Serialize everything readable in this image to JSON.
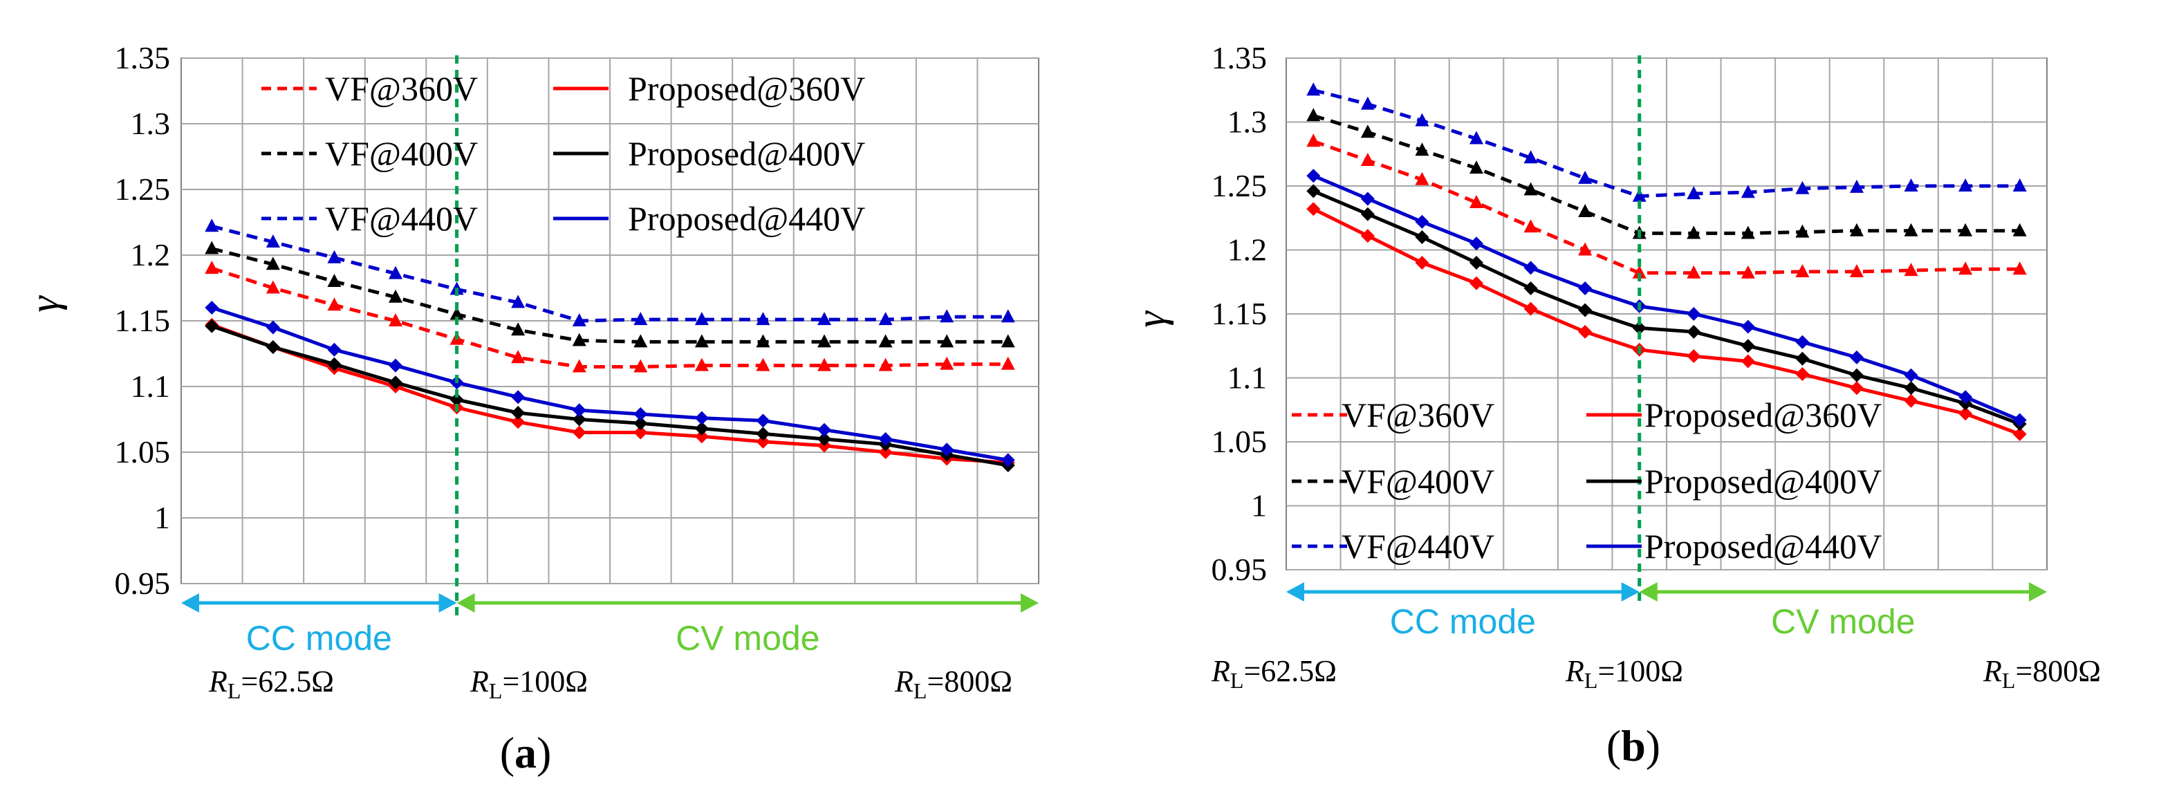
{
  "chart_data": [
    {
      "type": "line",
      "panel_label": "(a)",
      "ylabel": "γ",
      "ylim": [
        0.95,
        1.35
      ],
      "yticks": [
        "0.95",
        "1",
        "1.05",
        "1.1",
        "1.15",
        "1.2",
        "1.25",
        "1.3",
        "1.35"
      ],
      "legend_position": "top",
      "legend_rows": 3,
      "divider_index": 4,
      "mode_labels": [
        "CC mode",
        "CV mode"
      ],
      "rl_labels": [
        {
          "sub": "L",
          "value": "=62.5Ω"
        },
        {
          "sub": "L",
          "value": "=100Ω"
        },
        {
          "sub": "L",
          "value": "=800Ω"
        }
      ],
      "series": [
        {
          "name": "VF@360V",
          "color": "#ff0000",
          "dashed": true,
          "values": [
            1.19,
            1.175,
            1.162,
            1.15,
            1.136,
            1.122,
            1.115,
            1.115,
            1.116,
            1.116,
            1.116,
            1.116,
            1.117,
            1.117
          ]
        },
        {
          "name": "VF@400V",
          "color": "#000000",
          "dashed": true,
          "values": [
            1.205,
            1.193,
            1.18,
            1.168,
            1.155,
            1.143,
            1.135,
            1.134,
            1.134,
            1.134,
            1.134,
            1.134,
            1.134,
            1.134
          ]
        },
        {
          "name": "VF@440V",
          "color": "#0000cc",
          "dashed": true,
          "values": [
            1.222,
            1.21,
            1.198,
            1.186,
            1.174,
            1.164,
            1.15,
            1.151,
            1.151,
            1.151,
            1.151,
            1.151,
            1.153,
            1.153
          ]
        },
        {
          "name": "Proposed@360V",
          "color": "#ff0000",
          "dashed": false,
          "values": [
            1.147,
            1.13,
            1.114,
            1.1,
            1.084,
            1.073,
            1.065,
            1.065,
            1.062,
            1.058,
            1.055,
            1.05,
            1.045,
            1.042
          ]
        },
        {
          "name": "Proposed@400V",
          "color": "#000000",
          "dashed": false,
          "values": [
            1.146,
            1.13,
            1.117,
            1.103,
            1.09,
            1.08,
            1.075,
            1.072,
            1.068,
            1.064,
            1.06,
            1.056,
            1.048,
            1.04
          ]
        },
        {
          "name": "Proposed@440V",
          "color": "#0000cc",
          "dashed": false,
          "values": [
            1.16,
            1.145,
            1.128,
            1.116,
            1.103,
            1.092,
            1.082,
            1.079,
            1.076,
            1.074,
            1.067,
            1.06,
            1.052,
            1.044
          ]
        }
      ]
    },
    {
      "type": "line",
      "panel_label": "(b)",
      "ylabel": "γ",
      "ylim": [
        0.95,
        1.35
      ],
      "yticks": [
        "0.95",
        "1",
        "1.05",
        "1.1",
        "1.15",
        "1.2",
        "1.25",
        "1.3",
        "1.35"
      ],
      "legend_position": "bottom",
      "legend_rows": 3,
      "divider_index": 6,
      "mode_labels": [
        "CC mode",
        "CV mode"
      ],
      "rl_labels": [
        {
          "sub": "L",
          "value": "=62.5Ω"
        },
        {
          "sub": "L",
          "value": "=100Ω"
        },
        {
          "sub": "L",
          "value": "=800Ω"
        }
      ],
      "series": [
        {
          "name": "VF@360V",
          "color": "#ff0000",
          "dashed": true,
          "values": [
            1.285,
            1.27,
            1.255,
            1.237,
            1.218,
            1.2,
            1.182,
            1.182,
            1.182,
            1.183,
            1.183,
            1.184,
            1.185,
            1.185
          ]
        },
        {
          "name": "VF@400V",
          "color": "#000000",
          "dashed": true,
          "values": [
            1.305,
            1.292,
            1.278,
            1.264,
            1.247,
            1.23,
            1.213,
            1.213,
            1.213,
            1.214,
            1.215,
            1.215,
            1.215,
            1.215
          ]
        },
        {
          "name": "VF@440V",
          "color": "#0000cc",
          "dashed": true,
          "values": [
            1.325,
            1.314,
            1.301,
            1.287,
            1.272,
            1.256,
            1.242,
            1.244,
            1.245,
            1.248,
            1.249,
            1.25,
            1.25,
            1.25
          ]
        },
        {
          "name": "Proposed@360V",
          "color": "#ff0000",
          "dashed": false,
          "values": [
            1.232,
            1.211,
            1.19,
            1.174,
            1.154,
            1.136,
            1.122,
            1.117,
            1.113,
            1.103,
            1.092,
            1.082,
            1.072,
            1.056
          ]
        },
        {
          "name": "Proposed@400V",
          "color": "#000000",
          "dashed": false,
          "values": [
            1.246,
            1.228,
            1.21,
            1.19,
            1.17,
            1.153,
            1.139,
            1.136,
            1.125,
            1.115,
            1.102,
            1.092,
            1.08,
            1.064
          ]
        },
        {
          "name": "Proposed@440V",
          "color": "#0000cc",
          "dashed": false,
          "values": [
            1.258,
            1.24,
            1.222,
            1.205,
            1.186,
            1.17,
            1.156,
            1.15,
            1.14,
            1.128,
            1.116,
            1.102,
            1.085,
            1.067
          ]
        }
      ]
    }
  ]
}
